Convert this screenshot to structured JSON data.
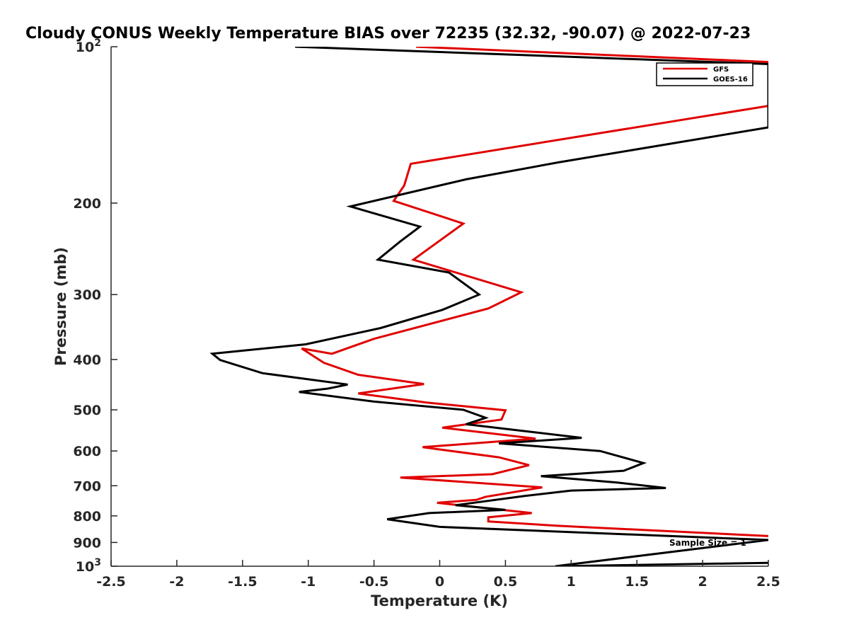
{
  "chart_data": {
    "type": "line",
    "title": "Cloudy CONUS Weekly Temperature BIAS over 72235 (32.32, -90.07) @ 2022-07-23",
    "xlabel": "Temperature (K)",
    "ylabel": "Pressure (mb)",
    "xlim": [
      -2.5,
      2.5
    ],
    "ylim": [
      100,
      1000
    ],
    "yscale": "log",
    "y_reversed": true,
    "x_ticks": [
      "-2.5",
      "-2",
      "-1.5",
      "-1",
      "-0.5",
      "0",
      "0.5",
      "1",
      "1.5",
      "2",
      "2.5"
    ],
    "y_ticks": [
      {
        "value": 100,
        "label": "10",
        "sup": "2"
      },
      {
        "value": 200,
        "label": "200",
        "sup": ""
      },
      {
        "value": 300,
        "label": "300",
        "sup": ""
      },
      {
        "value": 400,
        "label": "400",
        "sup": ""
      },
      {
        "value": 500,
        "label": "500",
        "sup": ""
      },
      {
        "value": 600,
        "label": "600",
        "sup": ""
      },
      {
        "value": 700,
        "label": "700",
        "sup": ""
      },
      {
        "value": 800,
        "label": "800",
        "sup": ""
      },
      {
        "value": 900,
        "label": "900",
        "sup": ""
      },
      {
        "value": 1000,
        "label": "10",
        "sup": "3"
      }
    ],
    "legend_position": "top-right",
    "series": [
      {
        "name": "GFS",
        "color": "#e00000",
        "points": [
          [
            -0.18,
            100
          ],
          [
            2.5,
            107
          ],
          [
            2.5,
            130
          ],
          [
            -0.22,
            168
          ],
          [
            -0.27,
            185
          ],
          [
            -0.35,
            198
          ],
          [
            0.18,
            219
          ],
          [
            -0.2,
            257
          ],
          [
            0.62,
            297
          ],
          [
            0.37,
            319
          ],
          [
            -0.5,
            365
          ],
          [
            -0.82,
            390
          ],
          [
            -1.05,
            381
          ],
          [
            -0.88,
            406
          ],
          [
            -0.62,
            428
          ],
          [
            -0.12,
            446
          ],
          [
            -0.62,
            465
          ],
          [
            -0.1,
            484
          ],
          [
            0.5,
            501
          ],
          [
            0.47,
            522
          ],
          [
            0.02,
            541
          ],
          [
            0.73,
            568
          ],
          [
            -0.13,
            590
          ],
          [
            0.45,
            617
          ],
          [
            0.68,
            639
          ],
          [
            0.4,
            665
          ],
          [
            -0.3,
            675
          ],
          [
            0.78,
            705
          ],
          [
            0.35,
            735
          ],
          [
            0.28,
            745
          ],
          [
            -0.02,
            755
          ],
          [
            0.7,
            790
          ],
          [
            0.37,
            805
          ],
          [
            0.37,
            820
          ],
          [
            0.9,
            836
          ],
          [
            2.5,
            875
          ]
        ]
      },
      {
        "name": "GOES-16",
        "color": "#000000",
        "points": [
          [
            -1.1,
            100
          ],
          [
            2.5,
            108
          ],
          [
            2.5,
            143
          ],
          [
            0.9,
            167
          ],
          [
            0.2,
            180
          ],
          [
            -0.68,
            203
          ],
          [
            -0.15,
            222
          ],
          [
            -0.3,
            237
          ],
          [
            -0.47,
            257
          ],
          [
            0.07,
            272
          ],
          [
            0.3,
            300
          ],
          [
            0.02,
            321
          ],
          [
            -0.45,
            348
          ],
          [
            -1.02,
            374
          ],
          [
            -1.73,
            390
          ],
          [
            -1.67,
            401
          ],
          [
            -1.35,
            425
          ],
          [
            -0.7,
            447
          ],
          [
            -0.85,
            455
          ],
          [
            -1.07,
            462
          ],
          [
            -0.5,
            482
          ],
          [
            0.18,
            500
          ],
          [
            0.35,
            518
          ],
          [
            0.2,
            533
          ],
          [
            1.08,
            566
          ],
          [
            0.45,
            580
          ],
          [
            1.22,
            600
          ],
          [
            1.55,
            633
          ],
          [
            1.4,
            655
          ],
          [
            0.77,
            671
          ],
          [
            1.35,
            690
          ],
          [
            1.72,
            707
          ],
          [
            1.0,
            715
          ],
          [
            0.65,
            732
          ],
          [
            0.12,
            763
          ],
          [
            0.5,
            779
          ],
          [
            -0.08,
            790
          ],
          [
            -0.4,
            812
          ],
          [
            0.0,
            840
          ],
          [
            2.5,
            890
          ],
          [
            0.88,
            1000
          ],
          [
            2.5,
            985
          ]
        ]
      }
    ],
    "annotations": [
      {
        "text": "Sample Size = 1"
      }
    ]
  }
}
